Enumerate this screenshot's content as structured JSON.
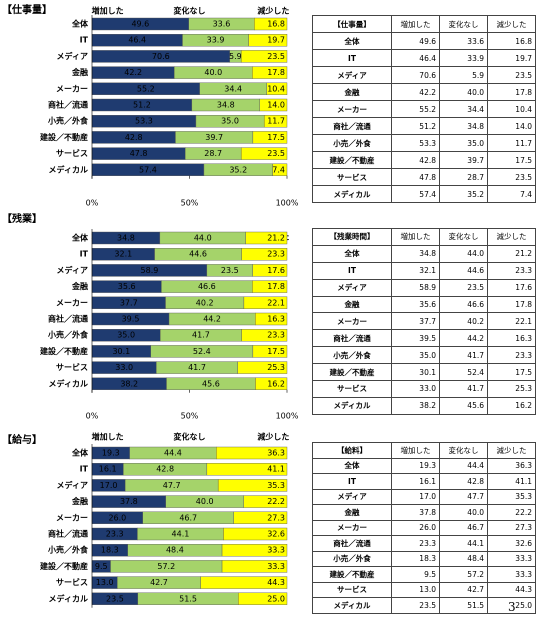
{
  "chart_data": [
    {
      "type": "stacked-barh",
      "title": "【仕事量】",
      "categories": [
        "全体",
        "IT",
        "メディア",
        "金融",
        "メーカー",
        "商社／流通",
        "小売／外食",
        "建設／不動産",
        "サービス",
        "メディカル"
      ],
      "series": [
        {
          "name": "増加した",
          "color": "#1f3b70",
          "values": [
            49.6,
            46.4,
            70.6,
            42.2,
            55.2,
            51.2,
            53.3,
            42.8,
            47.8,
            57.4
          ],
          "value_labels": [
            "49.6",
            "46.4",
            "70.6",
            "42.2",
            "55.2",
            "51.2",
            "53.3",
            "42.8",
            "47.8",
            "57.4"
          ]
        },
        {
          "name": "変化なし",
          "color": "#a5d36a",
          "values": [
            33.6,
            33.9,
            5.9,
            40.0,
            34.4,
            34.8,
            35.0,
            39.7,
            28.7,
            35.2
          ],
          "value_labels": [
            "33.6",
            "33.9",
            "5.9",
            "40.0",
            "34.4",
            "34.8",
            "35.0",
            "39.7",
            "28.7",
            "35.2"
          ]
        },
        {
          "name": "減少した",
          "color": "#ffff00",
          "values": [
            16.8,
            19.7,
            23.5,
            17.8,
            10.4,
            14.0,
            11.7,
            17.5,
            23.5,
            7.4
          ],
          "value_labels": [
            "16.8",
            "19.7",
            "23.5",
            "17.8",
            "10.4",
            "14.0",
            "11.7",
            "17.5",
            "23.5",
            "7.4"
          ]
        }
      ],
      "xlim": [
        0,
        100
      ],
      "xticks": [
        {
          "value": 0,
          "label": "0%"
        },
        {
          "value": 50,
          "label": "50%"
        },
        {
          "value": 100,
          "label": "100%"
        }
      ]
    },
    {
      "type": "stacked-barh",
      "title": "【残業】",
      "categories": [
        "全体",
        "IT",
        "メディア",
        "金融",
        "メーカー",
        "商社／流通",
        "小売／外食",
        "建設／不動産",
        "サービス",
        "メディカル"
      ],
      "series": [
        {
          "name": "増加した",
          "color": "#1f3b70",
          "values": [
            34.8,
            32.1,
            58.9,
            35.6,
            37.7,
            39.5,
            35.0,
            30.1,
            33.0,
            38.2
          ],
          "value_labels": [
            "34.8",
            "32.1",
            "58.9",
            "35.6",
            "37.7",
            "39.5",
            "35.0",
            "30.1",
            "33.0",
            "38.2"
          ]
        },
        {
          "name": "変化なし",
          "color": "#a5d36a",
          "values": [
            44.0,
            44.6,
            23.5,
            46.6,
            40.2,
            44.2,
            41.7,
            52.4,
            41.7,
            45.6
          ],
          "value_labels": [
            "44.0",
            "44.6",
            "23.5",
            "46.6",
            "40.2",
            "44.2",
            "41.7",
            "52.4",
            "41.7",
            "45.6"
          ]
        },
        {
          "name": "減少した",
          "color": "#ffff00",
          "values": [
            21.2,
            23.3,
            17.6,
            17.8,
            22.1,
            16.3,
            23.3,
            17.5,
            25.3,
            16.2
          ],
          "value_labels": [
            "21.2",
            "23.3",
            "17.6",
            "17.8",
            "22.1",
            "16.3",
            "23.3",
            "17.5",
            "25.3",
            "16.2"
          ]
        }
      ],
      "xlim": [
        0,
        100
      ],
      "xticks": [
        {
          "value": 0,
          "label": "0%"
        },
        {
          "value": 50,
          "label": "50%"
        },
        {
          "value": 100,
          "label": "100%"
        }
      ]
    },
    {
      "type": "stacked-barh",
      "title": "【給与】",
      "categories": [
        "全体",
        "IT",
        "メディア",
        "金融",
        "メーカー",
        "商社／流通",
        "小売／外食",
        "建設／不動産",
        "サービス",
        "メディカル"
      ],
      "series": [
        {
          "name": "増加した",
          "color": "#1f3b70",
          "values": [
            19.3,
            16.1,
            17.0,
            37.8,
            26.0,
            23.3,
            18.3,
            9.5,
            13.0,
            23.5
          ],
          "value_labels": [
            "19.3",
            "16.1",
            "17.0",
            "37.8",
            "26.0",
            "23.3",
            "18.3",
            "9.5",
            "13.0",
            "23.5"
          ]
        },
        {
          "name": "変化なし",
          "color": "#a5d36a",
          "values": [
            44.4,
            42.8,
            47.7,
            40.0,
            46.7,
            44.1,
            48.4,
            57.2,
            42.7,
            51.5
          ],
          "value_labels": [
            "44.4",
            "42.8",
            "47.7",
            "40.0",
            "46.7",
            "44.1",
            "48.4",
            "57.2",
            "42.7",
            "51.5"
          ]
        },
        {
          "name": "減少した",
          "color": "#ffff00",
          "values": [
            36.3,
            41.1,
            35.3,
            22.2,
            27.3,
            32.6,
            33.3,
            33.3,
            44.3,
            25.0
          ],
          "value_labels": [
            "36.3",
            "41.1",
            "35.3",
            "22.2",
            "27.3",
            "32.6",
            "33.3",
            "33.3",
            "44.3",
            "25.0"
          ]
        }
      ],
      "xlim": [
        0,
        100
      ]
    }
  ],
  "tables": [
    {
      "header": [
        "【仕事量】",
        "増加した",
        "変化なし",
        "減少した"
      ],
      "rows": [
        [
          "全体",
          "49.6",
          "33.6",
          "16.8"
        ],
        [
          "IT",
          "46.4",
          "33.9",
          "19.7"
        ],
        [
          "メディア",
          "70.6",
          "5.9",
          "23.5"
        ],
        [
          "金融",
          "42.2",
          "40.0",
          "17.8"
        ],
        [
          "メーカー",
          "55.2",
          "34.4",
          "10.4"
        ],
        [
          "商社／流通",
          "51.2",
          "34.8",
          "14.0"
        ],
        [
          "小売／外食",
          "53.3",
          "35.0",
          "11.7"
        ],
        [
          "建設／不動産",
          "42.8",
          "39.7",
          "17.5"
        ],
        [
          "サービス",
          "47.8",
          "28.7",
          "23.5"
        ],
        [
          "メディカル",
          "57.4",
          "35.2",
          "7.4"
        ]
      ]
    },
    {
      "header": [
        "【残業時間】",
        "増加した",
        "変化なし",
        "減少した"
      ],
      "rows": [
        [
          "全体",
          "34.8",
          "44.0",
          "21.2"
        ],
        [
          "IT",
          "32.1",
          "44.6",
          "23.3"
        ],
        [
          "メディア",
          "58.9",
          "23.5",
          "17.6"
        ],
        [
          "金融",
          "35.6",
          "46.6",
          "17.8"
        ],
        [
          "メーカー",
          "37.7",
          "40.2",
          "22.1"
        ],
        [
          "商社／流通",
          "39.5",
          "44.2",
          "16.3"
        ],
        [
          "小売／外食",
          "35.0",
          "41.7",
          "23.3"
        ],
        [
          "建設／不動産",
          "30.1",
          "52.4",
          "17.5"
        ],
        [
          "サービス",
          "33.0",
          "41.7",
          "25.3"
        ],
        [
          "メディカル",
          "38.2",
          "45.6",
          "16.2"
        ]
      ]
    },
    {
      "header": [
        "【給料】",
        "増加した",
        "変化なし",
        "減少した"
      ],
      "rows": [
        [
          "全体",
          "19.3",
          "44.4",
          "36.3"
        ],
        [
          "IT",
          "16.1",
          "42.8",
          "41.1"
        ],
        [
          "メディア",
          "17.0",
          "47.7",
          "35.3"
        ],
        [
          "金融",
          "37.8",
          "40.0",
          "22.2"
        ],
        [
          "メーカー",
          "26.0",
          "46.7",
          "27.3"
        ],
        [
          "商社／流通",
          "23.3",
          "44.1",
          "32.6"
        ],
        [
          "小売／外食",
          "18.3",
          "48.4",
          "33.3"
        ],
        [
          "建設／不動産",
          "9.5",
          "57.2",
          "33.3"
        ],
        [
          "サービス",
          "13.0",
          "42.7",
          "44.3"
        ],
        [
          "メディカル",
          "23.5",
          "51.5",
          "25.0"
        ]
      ]
    }
  ],
  "page_number": "3"
}
